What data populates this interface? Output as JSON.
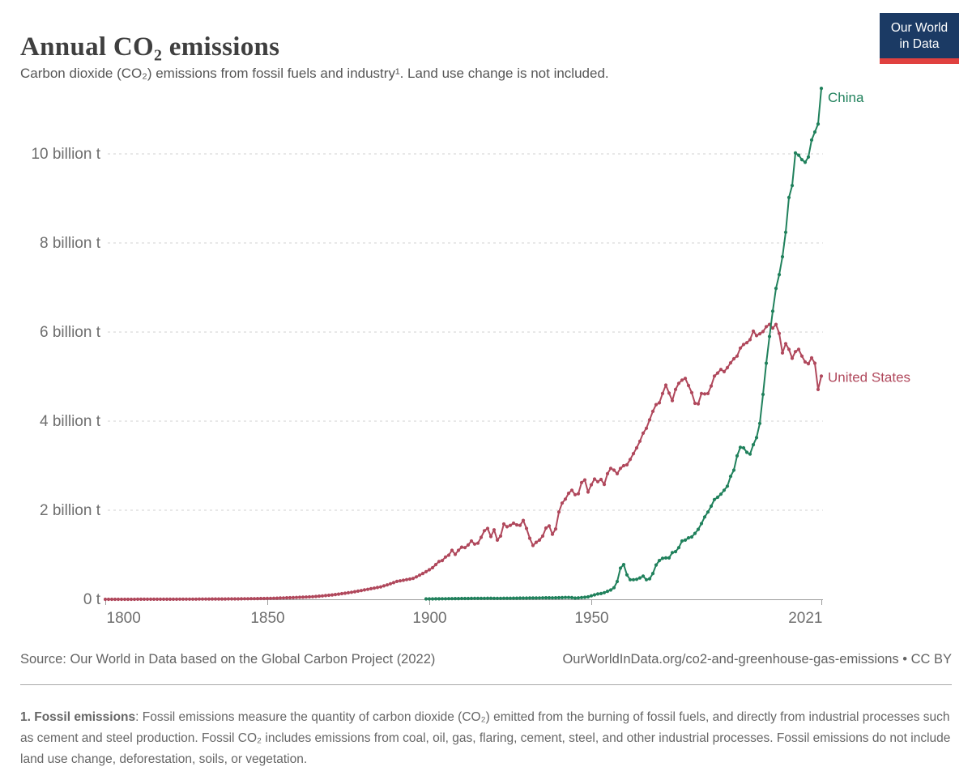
{
  "header": {
    "title": "Annual CO₂ emissions",
    "subtitle": "Carbon dioxide (CO₂) emissions from fossil fuels and industry¹. Land use change is not included."
  },
  "logo": {
    "line1": "Our World",
    "line2": "in Data",
    "bg_color": "#1b3a64",
    "bar_color": "#e0413f"
  },
  "footer": {
    "source": "Source: Our World in Data based on the Global Carbon Project (2022)",
    "link": "OurWorldInData.org/co2-and-greenhouse-gas-emissions • CC BY"
  },
  "footnote": {
    "label": "1. Fossil emissions",
    "text": ": Fossil emissions measure the quantity of carbon dioxide (CO₂) emitted from the burning of fossil fuels, and directly from industrial processes such as cement and steel production. Fossil CO₂ includes emissions from coal, oil, gas, flaring, cement, steel, and other industrial processes. Fossil emissions do not include land use change, deforestation, soils, or vegetation."
  },
  "chart_data": {
    "type": "line",
    "title": "Annual CO₂ emissions",
    "unit": "billion tonnes",
    "grid": "dashed-horizontal",
    "ylim": [
      0,
      11.6
    ],
    "x_range": [
      1800,
      2022
    ],
    "x_ticks": [
      {
        "year": 1800,
        "label": "1800",
        "anchor": "start"
      },
      {
        "year": 1850,
        "label": "1850",
        "anchor": "middle"
      },
      {
        "year": 1900,
        "label": "1900",
        "anchor": "middle"
      },
      {
        "year": 1950,
        "label": "1950",
        "anchor": "middle"
      },
      {
        "year": 2021,
        "label": "2021",
        "anchor": "end"
      }
    ],
    "y_ticks": [
      {
        "value": 0,
        "label": "0 t"
      },
      {
        "value": 2,
        "label": "2 billion t"
      },
      {
        "value": 4,
        "label": "4 billion t"
      },
      {
        "value": 6,
        "label": "6 billion t"
      },
      {
        "value": 8,
        "label": "8 billion t"
      },
      {
        "value": 10,
        "label": "10 billion t"
      }
    ],
    "series": [
      {
        "name": "United States",
        "color": "#b0485c",
        "start_year": 1800,
        "label_dx": 8,
        "label_dy": 7,
        "values": [
          0.0003,
          0.0003,
          0.0004,
          0.0004,
          0.0004,
          0.0005,
          0.0006,
          0.0006,
          0.0007,
          0.0008,
          0.001,
          0.001,
          0.001,
          0.001,
          0.0012,
          0.0015,
          0.0016,
          0.0017,
          0.0019,
          0.002,
          0.002,
          0.0022,
          0.0025,
          0.0028,
          0.003,
          0.0033,
          0.0036,
          0.004,
          0.0043,
          0.0047,
          0.005,
          0.0055,
          0.006,
          0.0065,
          0.007,
          0.0075,
          0.008,
          0.008,
          0.0085,
          0.009,
          0.009,
          0.01,
          0.011,
          0.012,
          0.013,
          0.014,
          0.015,
          0.017,
          0.018,
          0.019,
          0.02,
          0.022,
          0.024,
          0.026,
          0.029,
          0.031,
          0.034,
          0.036,
          0.039,
          0.042,
          0.045,
          0.048,
          0.051,
          0.055,
          0.059,
          0.064,
          0.07,
          0.076,
          0.083,
          0.09,
          0.098,
          0.107,
          0.117,
          0.127,
          0.137,
          0.147,
          0.158,
          0.17,
          0.183,
          0.196,
          0.211,
          0.224,
          0.238,
          0.251,
          0.265,
          0.279,
          0.301,
          0.324,
          0.35,
          0.375,
          0.402,
          0.415,
          0.428,
          0.442,
          0.455,
          0.469,
          0.504,
          0.541,
          0.58,
          0.62,
          0.663,
          0.71,
          0.78,
          0.85,
          0.87,
          0.95,
          0.99,
          1.1,
          1.01,
          1.1,
          1.17,
          1.16,
          1.22,
          1.31,
          1.24,
          1.26,
          1.39,
          1.54,
          1.59,
          1.41,
          1.56,
          1.33,
          1.42,
          1.69,
          1.63,
          1.66,
          1.71,
          1.67,
          1.66,
          1.77,
          1.59,
          1.37,
          1.21,
          1.28,
          1.33,
          1.42,
          1.6,
          1.65,
          1.46,
          1.58,
          1.96,
          2.16,
          2.25,
          2.38,
          2.45,
          2.35,
          2.37,
          2.62,
          2.68,
          2.41,
          2.57,
          2.7,
          2.64,
          2.69,
          2.58,
          2.82,
          2.94,
          2.9,
          2.82,
          2.94,
          3.0,
          3.02,
          3.14,
          3.27,
          3.4,
          3.55,
          3.73,
          3.84,
          4.03,
          4.22,
          4.37,
          4.41,
          4.62,
          4.81,
          4.63,
          4.46,
          4.71,
          4.85,
          4.92,
          4.96,
          4.8,
          4.64,
          4.4,
          4.39,
          4.62,
          4.61,
          4.62,
          4.79,
          5.01,
          5.08,
          5.16,
          5.11,
          5.2,
          5.31,
          5.4,
          5.46,
          5.64,
          5.72,
          5.76,
          5.83,
          6.02,
          5.92,
          5.96,
          6.01,
          6.12,
          6.17,
          6.09,
          6.17,
          5.97,
          5.53,
          5.74,
          5.61,
          5.41,
          5.56,
          5.61,
          5.46,
          5.33,
          5.29,
          5.42,
          5.3,
          4.71,
          5.01
        ]
      },
      {
        "name": "China",
        "color": "#20815c",
        "start_year": 1899,
        "label_dx": 8,
        "label_dy": 17,
        "values": [
          0.009,
          0.01,
          0.01,
          0.011,
          0.011,
          0.012,
          0.013,
          0.014,
          0.015,
          0.016,
          0.017,
          0.018,
          0.019,
          0.019,
          0.02,
          0.021,
          0.021,
          0.022,
          0.022,
          0.023,
          0.023,
          0.021,
          0.022,
          0.022,
          0.023,
          0.024,
          0.024,
          0.025,
          0.026,
          0.027,
          0.028,
          0.028,
          0.029,
          0.029,
          0.03,
          0.031,
          0.032,
          0.034,
          0.034,
          0.033,
          0.035,
          0.037,
          0.039,
          0.041,
          0.042,
          0.038,
          0.027,
          0.032,
          0.04,
          0.045,
          0.055,
          0.079,
          0.1,
          0.12,
          0.13,
          0.15,
          0.18,
          0.21,
          0.26,
          0.4,
          0.7,
          0.78,
          0.55,
          0.44,
          0.44,
          0.45,
          0.48,
          0.52,
          0.44,
          0.46,
          0.58,
          0.77,
          0.87,
          0.92,
          0.93,
          0.93,
          1.05,
          1.07,
          1.16,
          1.31,
          1.33,
          1.38,
          1.4,
          1.48,
          1.57,
          1.7,
          1.85,
          1.96,
          2.09,
          2.24,
          2.29,
          2.36,
          2.45,
          2.54,
          2.76,
          2.9,
          3.22,
          3.41,
          3.4,
          3.3,
          3.26,
          3.47,
          3.63,
          3.95,
          4.6,
          5.3,
          5.9,
          6.47,
          6.98,
          7.29,
          7.69,
          8.24,
          9.02,
          9.29,
          10.02,
          9.97,
          9.87,
          9.81,
          9.93,
          10.31,
          10.49,
          10.67,
          11.47
        ]
      }
    ]
  }
}
